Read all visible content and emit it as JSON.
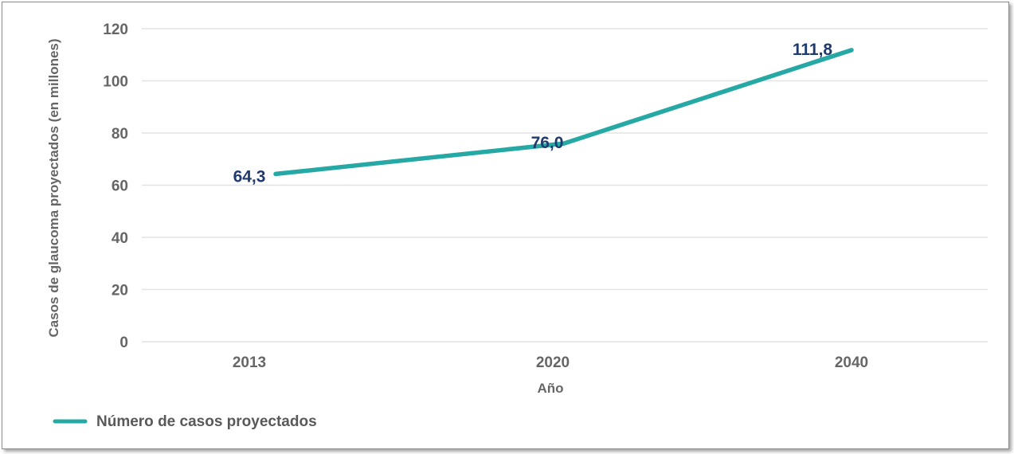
{
  "chart_data": {
    "type": "line",
    "title": "",
    "xlabel": "Año",
    "ylabel": "Casos de glaucoma proyectados (en millones)",
    "categories": [
      "2013",
      "2020",
      "2040"
    ],
    "yticks": [
      "0",
      "20",
      "40",
      "60",
      "80",
      "100",
      "120"
    ],
    "ylim": [
      0,
      120
    ],
    "grid": true,
    "legend_position": "bottom-left",
    "series": [
      {
        "name": "Número de casos proyectados",
        "values": [
          64.3,
          76.0,
          111.8
        ],
        "labels": [
          "64,3",
          "76,0",
          "111,8"
        ],
        "color": "#26a9a5"
      }
    ]
  }
}
